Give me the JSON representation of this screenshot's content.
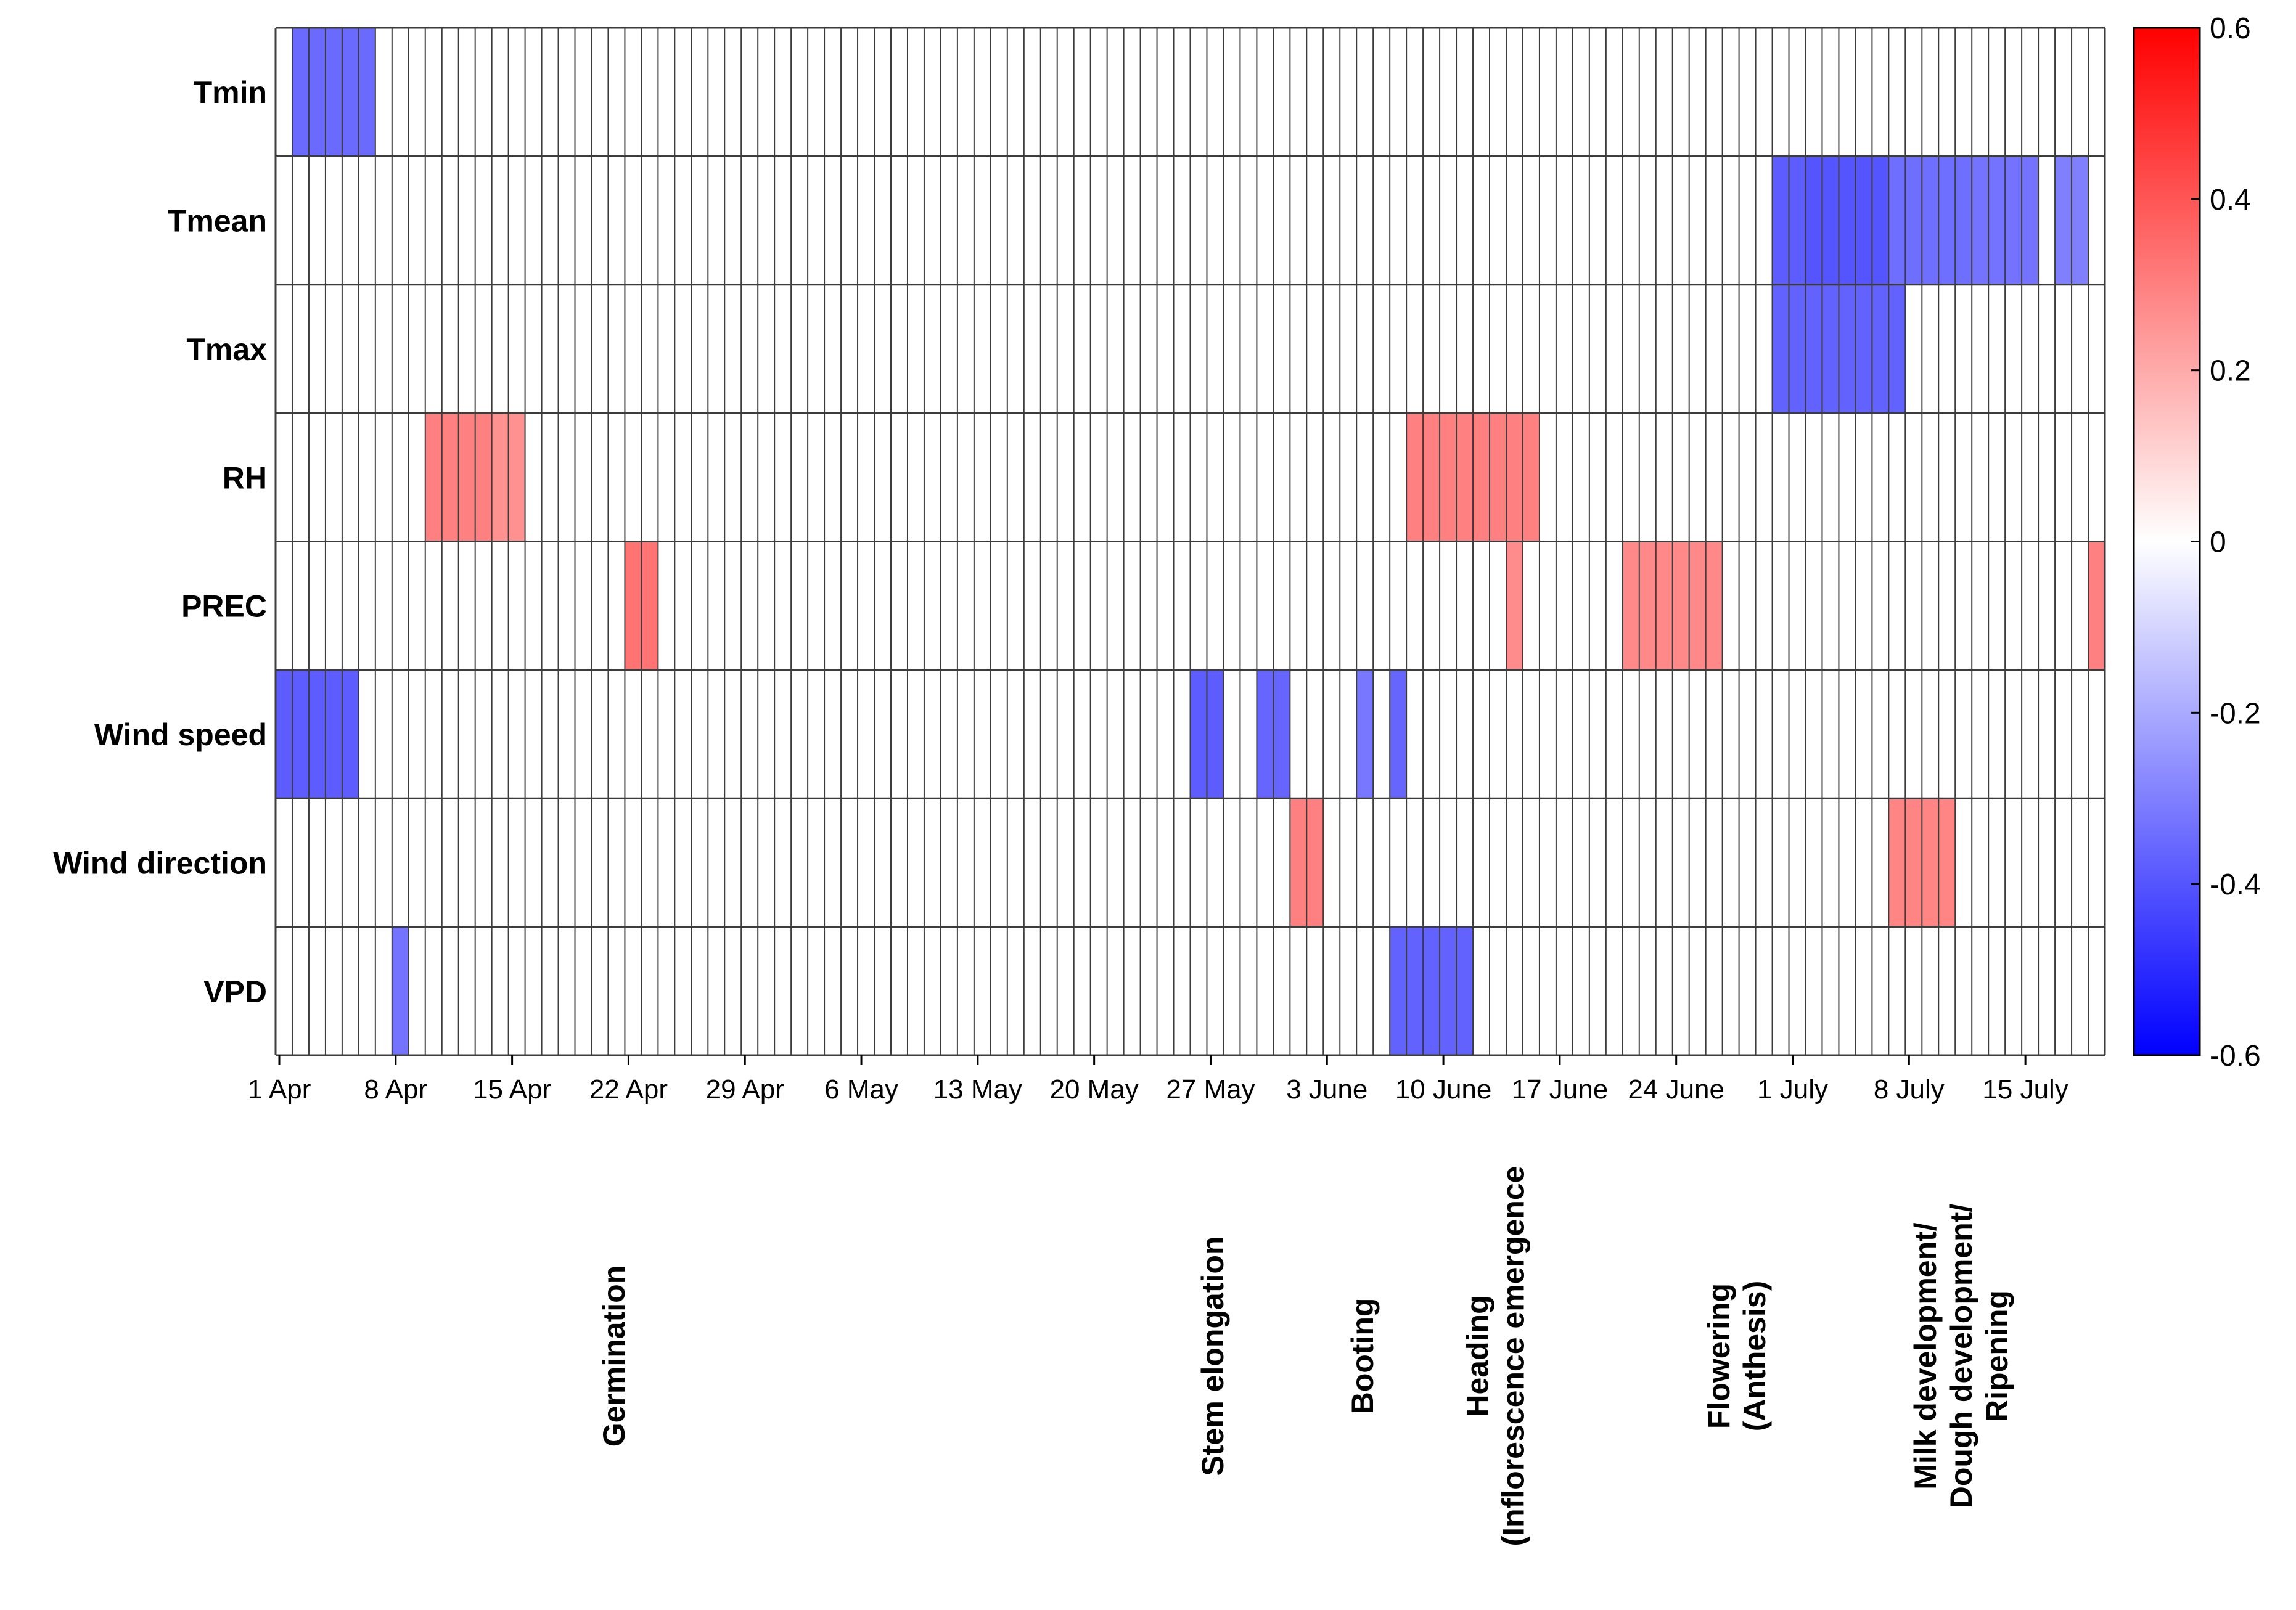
{
  "chart_data": {
    "type": "heatmap",
    "title": "",
    "rows": [
      "Tmin",
      "Tmean",
      "Tmax",
      "RH",
      "PREC",
      "Wind speed",
      "Wind direction",
      "VPD"
    ],
    "n_days": 110,
    "x_ticks": [
      {
        "day": 0,
        "label": "1 Apr"
      },
      {
        "day": 7,
        "label": "8 Apr"
      },
      {
        "day": 14,
        "label": "15 Apr"
      },
      {
        "day": 21,
        "label": "22 Apr"
      },
      {
        "day": 28,
        "label": "29 Apr"
      },
      {
        "day": 35,
        "label": "6 May"
      },
      {
        "day": 42,
        "label": "13 May"
      },
      {
        "day": 49,
        "label": "20 May"
      },
      {
        "day": 56,
        "label": "27 May"
      },
      {
        "day": 63,
        "label": "3 June"
      },
      {
        "day": 70,
        "label": "10 June"
      },
      {
        "day": 77,
        "label": "17 June"
      },
      {
        "day": 84,
        "label": "24 June"
      },
      {
        "day": 91,
        "label": "1 July"
      },
      {
        "day": 98,
        "label": "8 July"
      },
      {
        "day": 105,
        "label": "15 July"
      }
    ],
    "colorbar": {
      "min": -0.6,
      "max": 0.6,
      "ticks": [
        0.6,
        0.4,
        0.2,
        0,
        -0.2,
        -0.4,
        -0.6
      ],
      "tick_labels": [
        "0.6",
        "0.4",
        "0.2",
        "0",
        "-0.2",
        "-0.4",
        "-0.6"
      ],
      "low_color": "#0000ff",
      "mid_color": "#ffffff",
      "high_color": "#ff0000"
    },
    "segments": [
      {
        "row": "Tmin",
        "start": 1,
        "end": 5,
        "value": -0.35
      },
      {
        "row": "Tmean",
        "start": 90,
        "end": 91,
        "value": -0.38
      },
      {
        "row": "Tmean",
        "start": 92,
        "end": 96,
        "value": -0.4
      },
      {
        "row": "Tmean",
        "start": 97,
        "end": 101,
        "value": -0.34
      },
      {
        "row": "Tmean",
        "start": 102,
        "end": 105,
        "value": -0.33
      },
      {
        "row": "Tmean",
        "start": 107,
        "end": 108,
        "value": -0.3
      },
      {
        "row": "Tmax",
        "start": 90,
        "end": 97,
        "value": -0.37
      },
      {
        "row": "RH",
        "start": 9,
        "end": 12,
        "value": 0.3
      },
      {
        "row": "RH",
        "start": 13,
        "end": 14,
        "value": 0.26
      },
      {
        "row": "RH",
        "start": 68,
        "end": 75,
        "value": 0.3
      },
      {
        "row": "PREC",
        "start": 21,
        "end": 22,
        "value": 0.33
      },
      {
        "row": "PREC",
        "start": 74,
        "end": 74,
        "value": 0.27
      },
      {
        "row": "PREC",
        "start": 81,
        "end": 86,
        "value": 0.28
      },
      {
        "row": "PREC",
        "start": 109,
        "end": 109,
        "value": 0.3
      },
      {
        "row": "Wind speed",
        "start": 0,
        "end": 4,
        "value": -0.38
      },
      {
        "row": "Wind speed",
        "start": 55,
        "end": 56,
        "value": -0.38
      },
      {
        "row": "Wind speed",
        "start": 59,
        "end": 60,
        "value": -0.36
      },
      {
        "row": "Wind speed",
        "start": 65,
        "end": 65,
        "value": -0.32
      },
      {
        "row": "Wind speed",
        "start": 67,
        "end": 67,
        "value": -0.36
      },
      {
        "row": "Wind direction",
        "start": 61,
        "end": 62,
        "value": 0.3
      },
      {
        "row": "Wind direction",
        "start": 97,
        "end": 100,
        "value": 0.29
      },
      {
        "row": "VPD",
        "start": 7,
        "end": 7,
        "value": -0.33
      },
      {
        "row": "VPD",
        "start": 67,
        "end": 71,
        "value": -0.37
      }
    ],
    "stages": [
      {
        "lines": [
          "Germination"
        ],
        "day": 20.5
      },
      {
        "lines": [
          "Stem elongation"
        ],
        "day": 56.5
      },
      {
        "lines": [
          "Booting"
        ],
        "day": 65.5
      },
      {
        "lines": [
          "Heading",
          "(Inflorescence emergence"
        ],
        "day": 73.5
      },
      {
        "lines": [
          "Flowering",
          "(Anthesis)"
        ],
        "day": 88
      },
      {
        "lines": [
          "Milk development/",
          "Dough development/",
          "Ripening"
        ],
        "day": 101.5
      }
    ]
  }
}
